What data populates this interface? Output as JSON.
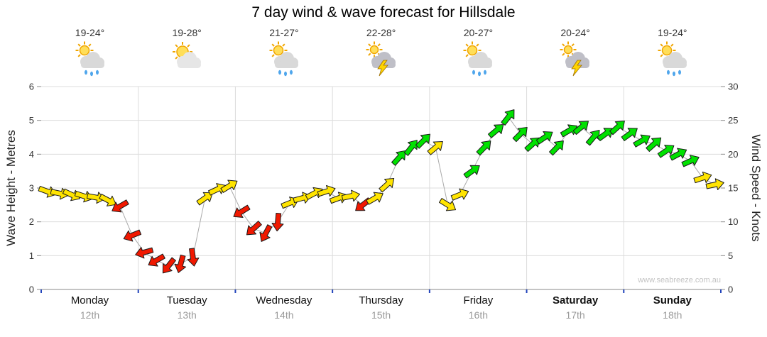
{
  "title": "7 day wind & wave forecast for Hillsdale",
  "watermark": "www.seabreeze.com.au",
  "y_left": {
    "label": "Wave Height - Metres",
    "ticks": [
      0,
      1,
      2,
      3,
      4,
      5,
      6
    ]
  },
  "y_right": {
    "label": "Wind Speed - Knots",
    "ticks": [
      0,
      5,
      10,
      15,
      20,
      25,
      30
    ]
  },
  "days": [
    {
      "name": "Monday",
      "date": "12th",
      "temp": "19-24°",
      "icon": "sun-cloud-rain-icon",
      "bold": false
    },
    {
      "name": "Tuesday",
      "date": "13th",
      "temp": "19-28°",
      "icon": "sun-cloud-icon",
      "bold": false
    },
    {
      "name": "Wednesday",
      "date": "14th",
      "temp": "21-27°",
      "icon": "sun-cloud-rain-icon",
      "bold": false
    },
    {
      "name": "Thursday",
      "date": "15th",
      "temp": "22-28°",
      "icon": "storm-cloud-lightning-icon",
      "bold": false
    },
    {
      "name": "Friday",
      "date": "16th",
      "temp": "20-27°",
      "icon": "sun-cloud-rain-icon",
      "bold": false
    },
    {
      "name": "Saturday",
      "date": "17th",
      "temp": "20-24°",
      "icon": "storm-cloud-lightning-icon",
      "bold": true
    },
    {
      "name": "Sunday",
      "date": "18th",
      "temp": "19-24°",
      "icon": "sun-cloud-rain-icon",
      "bold": true
    }
  ],
  "colors": {
    "yellow": "#FFE400",
    "red": "#F01800",
    "green": "#00E100",
    "line": "#aaaaaa",
    "grid": "#dcdcdc",
    "axis": "#8a8a8a",
    "tick_blue": "#2244bb",
    "arrow_outline": "#1a1a1a"
  },
  "chart_data": {
    "type": "wind-vector-series",
    "title": "7 day wind & wave forecast for Hillsdale",
    "ylabel_left": "Wave Height - Metres",
    "ylabel_right": "Wind Speed - Knots",
    "ylim_left": [
      0,
      6
    ],
    "ylim_right": [
      0,
      30
    ],
    "grid": true,
    "days": [
      "Monday",
      "Tuesday",
      "Wednesday",
      "Thursday",
      "Friday",
      "Saturday",
      "Sunday"
    ],
    "samples_per_day": 8,
    "wind_knots": [
      14.5,
      14.2,
      14.0,
      13.8,
      13.6,
      13.2,
      12.3,
      8.0,
      5.5,
      4.3,
      3.5,
      3.8,
      4.8,
      13.5,
      14.8,
      15.3,
      11.5,
      9.0,
      8.3,
      10.0,
      12.8,
      13.5,
      14.2,
      14.5,
      13.5,
      13.8,
      12.5,
      13.5,
      15.5,
      19.5,
      21.0,
      22.0,
      21.0,
      12.5,
      14.0,
      17.5,
      21.0,
      23.5,
      25.5,
      23.0,
      21.5,
      22.5,
      21.0,
      23.5,
      24.0,
      22.5,
      23.0,
      24.0,
      23.0,
      22.0,
      21.5,
      20.5,
      20.0,
      19.0,
      16.5,
      15.5
    ],
    "wind_dir_deg": [
      20,
      12,
      25,
      18,
      10,
      28,
      150,
      158,
      165,
      150,
      128,
      105,
      82,
      -35,
      -25,
      -32,
      148,
      138,
      118,
      95,
      -22,
      -15,
      -28,
      -18,
      -20,
      -12,
      142,
      -30,
      -42,
      -48,
      -52,
      -45,
      -40,
      32,
      -22,
      -36,
      -46,
      -40,
      -52,
      -45,
      -42,
      -34,
      -46,
      -30,
      -40,
      -50,
      -36,
      -42,
      -36,
      -30,
      -42,
      -34,
      -28,
      -24,
      -18,
      -12
    ],
    "speed_level": [
      "yellow",
      "yellow",
      "yellow",
      "yellow",
      "yellow",
      "yellow",
      "red",
      "red",
      "red",
      "red",
      "red",
      "red",
      "red",
      "yellow",
      "yellow",
      "yellow",
      "red",
      "red",
      "red",
      "red",
      "yellow",
      "yellow",
      "yellow",
      "yellow",
      "yellow",
      "yellow",
      "red",
      "yellow",
      "yellow",
      "green",
      "green",
      "green",
      "yellow",
      "yellow",
      "yellow",
      "green",
      "green",
      "green",
      "green",
      "green",
      "green",
      "green",
      "green",
      "green",
      "green",
      "green",
      "green",
      "green",
      "green",
      "green",
      "green",
      "green",
      "green",
      "green",
      "yellow",
      "yellow"
    ],
    "level_colors": {
      "yellow": "#FFE400",
      "red": "#F01800",
      "green": "#00E100"
    }
  }
}
